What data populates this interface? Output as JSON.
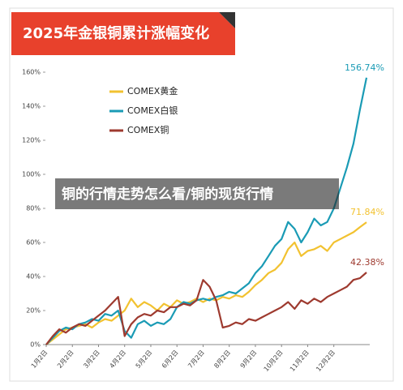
{
  "chart_data": {
    "type": "line",
    "title": "2025年金银铜累计涨幅变化",
    "categories": [
      "1月2日",
      null,
      null,
      null,
      "2月2日",
      null,
      null,
      null,
      "3月2日",
      null,
      null,
      null,
      "4月2日",
      null,
      null,
      null,
      "5月2日",
      null,
      null,
      null,
      "6月2日",
      null,
      null,
      null,
      "7月2日",
      null,
      null,
      null,
      "8月2日",
      null,
      null,
      null,
      "9月2日",
      null,
      null,
      null,
      "10月2日",
      null,
      null,
      null,
      "11月2日",
      null,
      null,
      null,
      "12月2日",
      null,
      null,
      null,
      null,
      null
    ],
    "series": [
      {
        "name": "COMEX黄金",
        "color": "#f2c230",
        "end_label": "71.84%",
        "values": [
          0,
          3,
          6,
          9,
          10,
          11,
          12,
          10,
          13,
          15,
          14,
          17,
          20,
          27,
          22,
          25,
          23,
          20,
          24,
          22,
          26,
          24,
          25,
          27,
          25,
          27,
          26,
          28,
          27,
          29,
          28,
          31,
          35,
          38,
          42,
          44,
          48,
          56,
          60,
          52,
          55,
          56,
          58,
          55,
          60,
          62,
          64,
          66,
          69,
          71.84
        ]
      },
      {
        "name": "COMEX白银",
        "color": "#1a9bb5",
        "end_label": "156.74%",
        "values": [
          0,
          4,
          8,
          10,
          9,
          12,
          13,
          15,
          14,
          18,
          17,
          20,
          8,
          4,
          12,
          14,
          11,
          13,
          12,
          15,
          22,
          25,
          24,
          26,
          27,
          26,
          28,
          29,
          31,
          30,
          33,
          36,
          42,
          46,
          52,
          58,
          62,
          72,
          68,
          60,
          66,
          74,
          70,
          72,
          80,
          92,
          104,
          118,
          138,
          156.74
        ]
      },
      {
        "name": "COMEX铜",
        "color": "#9e3a2f",
        "end_label": "42.38%",
        "values": [
          0,
          5,
          9,
          7,
          10,
          12,
          11,
          14,
          17,
          20,
          24,
          28,
          5,
          12,
          16,
          18,
          17,
          20,
          19,
          22,
          22,
          24,
          23,
          26,
          38,
          34,
          26,
          10,
          11,
          13,
          12,
          15,
          14,
          16,
          18,
          20,
          22,
          25,
          21,
          26,
          24,
          27,
          25,
          28,
          30,
          32,
          34,
          38,
          39,
          42.38
        ]
      }
    ],
    "ylim": [
      0,
      160
    ],
    "yticks": [
      {
        "value": 0,
        "label": "0%"
      },
      {
        "value": 20,
        "label": "20%"
      },
      {
        "value": 40,
        "label": "40%"
      },
      {
        "value": 60,
        "label": "60%"
      },
      {
        "value": 80,
        "label": "80%"
      },
      {
        "value": 100,
        "label": "100%"
      },
      {
        "value": 120,
        "label": "120%"
      },
      {
        "value": 140,
        "label": "140%"
      },
      {
        "value": 160,
        "label": "160%"
      }
    ],
    "grid": false
  },
  "caption": "铜的行情走势怎么看/铜的现货行情"
}
